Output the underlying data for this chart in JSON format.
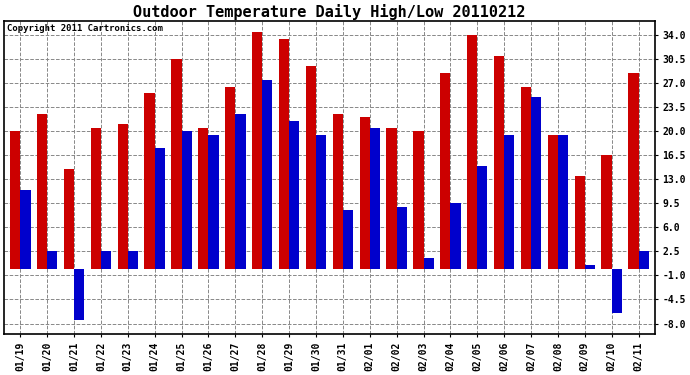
{
  "title": "Outdoor Temperature Daily High/Low 20110212",
  "copyright": "Copyright 2011 Cartronics.com",
  "dates": [
    "01/19",
    "01/20",
    "01/21",
    "01/22",
    "01/23",
    "01/24",
    "01/25",
    "01/26",
    "01/27",
    "01/28",
    "01/29",
    "01/30",
    "01/31",
    "02/01",
    "02/02",
    "02/03",
    "02/04",
    "02/05",
    "02/06",
    "02/07",
    "02/08",
    "02/09",
    "02/10",
    "02/11"
  ],
  "highs": [
    20.0,
    22.5,
    14.5,
    20.5,
    21.0,
    25.5,
    30.5,
    20.5,
    26.5,
    34.5,
    33.5,
    29.5,
    22.5,
    22.0,
    20.5,
    20.0,
    28.5,
    34.0,
    31.0,
    26.5,
    19.5,
    13.5,
    16.5,
    28.5
  ],
  "lows": [
    11.5,
    2.5,
    -7.5,
    2.5,
    2.5,
    17.5,
    20.0,
    19.5,
    22.5,
    27.5,
    21.5,
    19.5,
    8.5,
    20.5,
    9.0,
    1.5,
    9.5,
    15.0,
    19.5,
    25.0,
    19.5,
    0.5,
    -6.5,
    2.5
  ],
  "high_color": "#cc0000",
  "low_color": "#0000cc",
  "ylim": [
    -9.5,
    36.0
  ],
  "yticks": [
    -8.0,
    -4.5,
    -1.0,
    2.5,
    6.0,
    9.5,
    13.0,
    16.5,
    20.0,
    23.5,
    27.0,
    30.5,
    34.0
  ],
  "bg_color": "#ffffff",
  "grid_color": "#888888",
  "bar_width": 0.38,
  "title_fontsize": 11,
  "tick_fontsize": 7,
  "copyright_fontsize": 6.5
}
